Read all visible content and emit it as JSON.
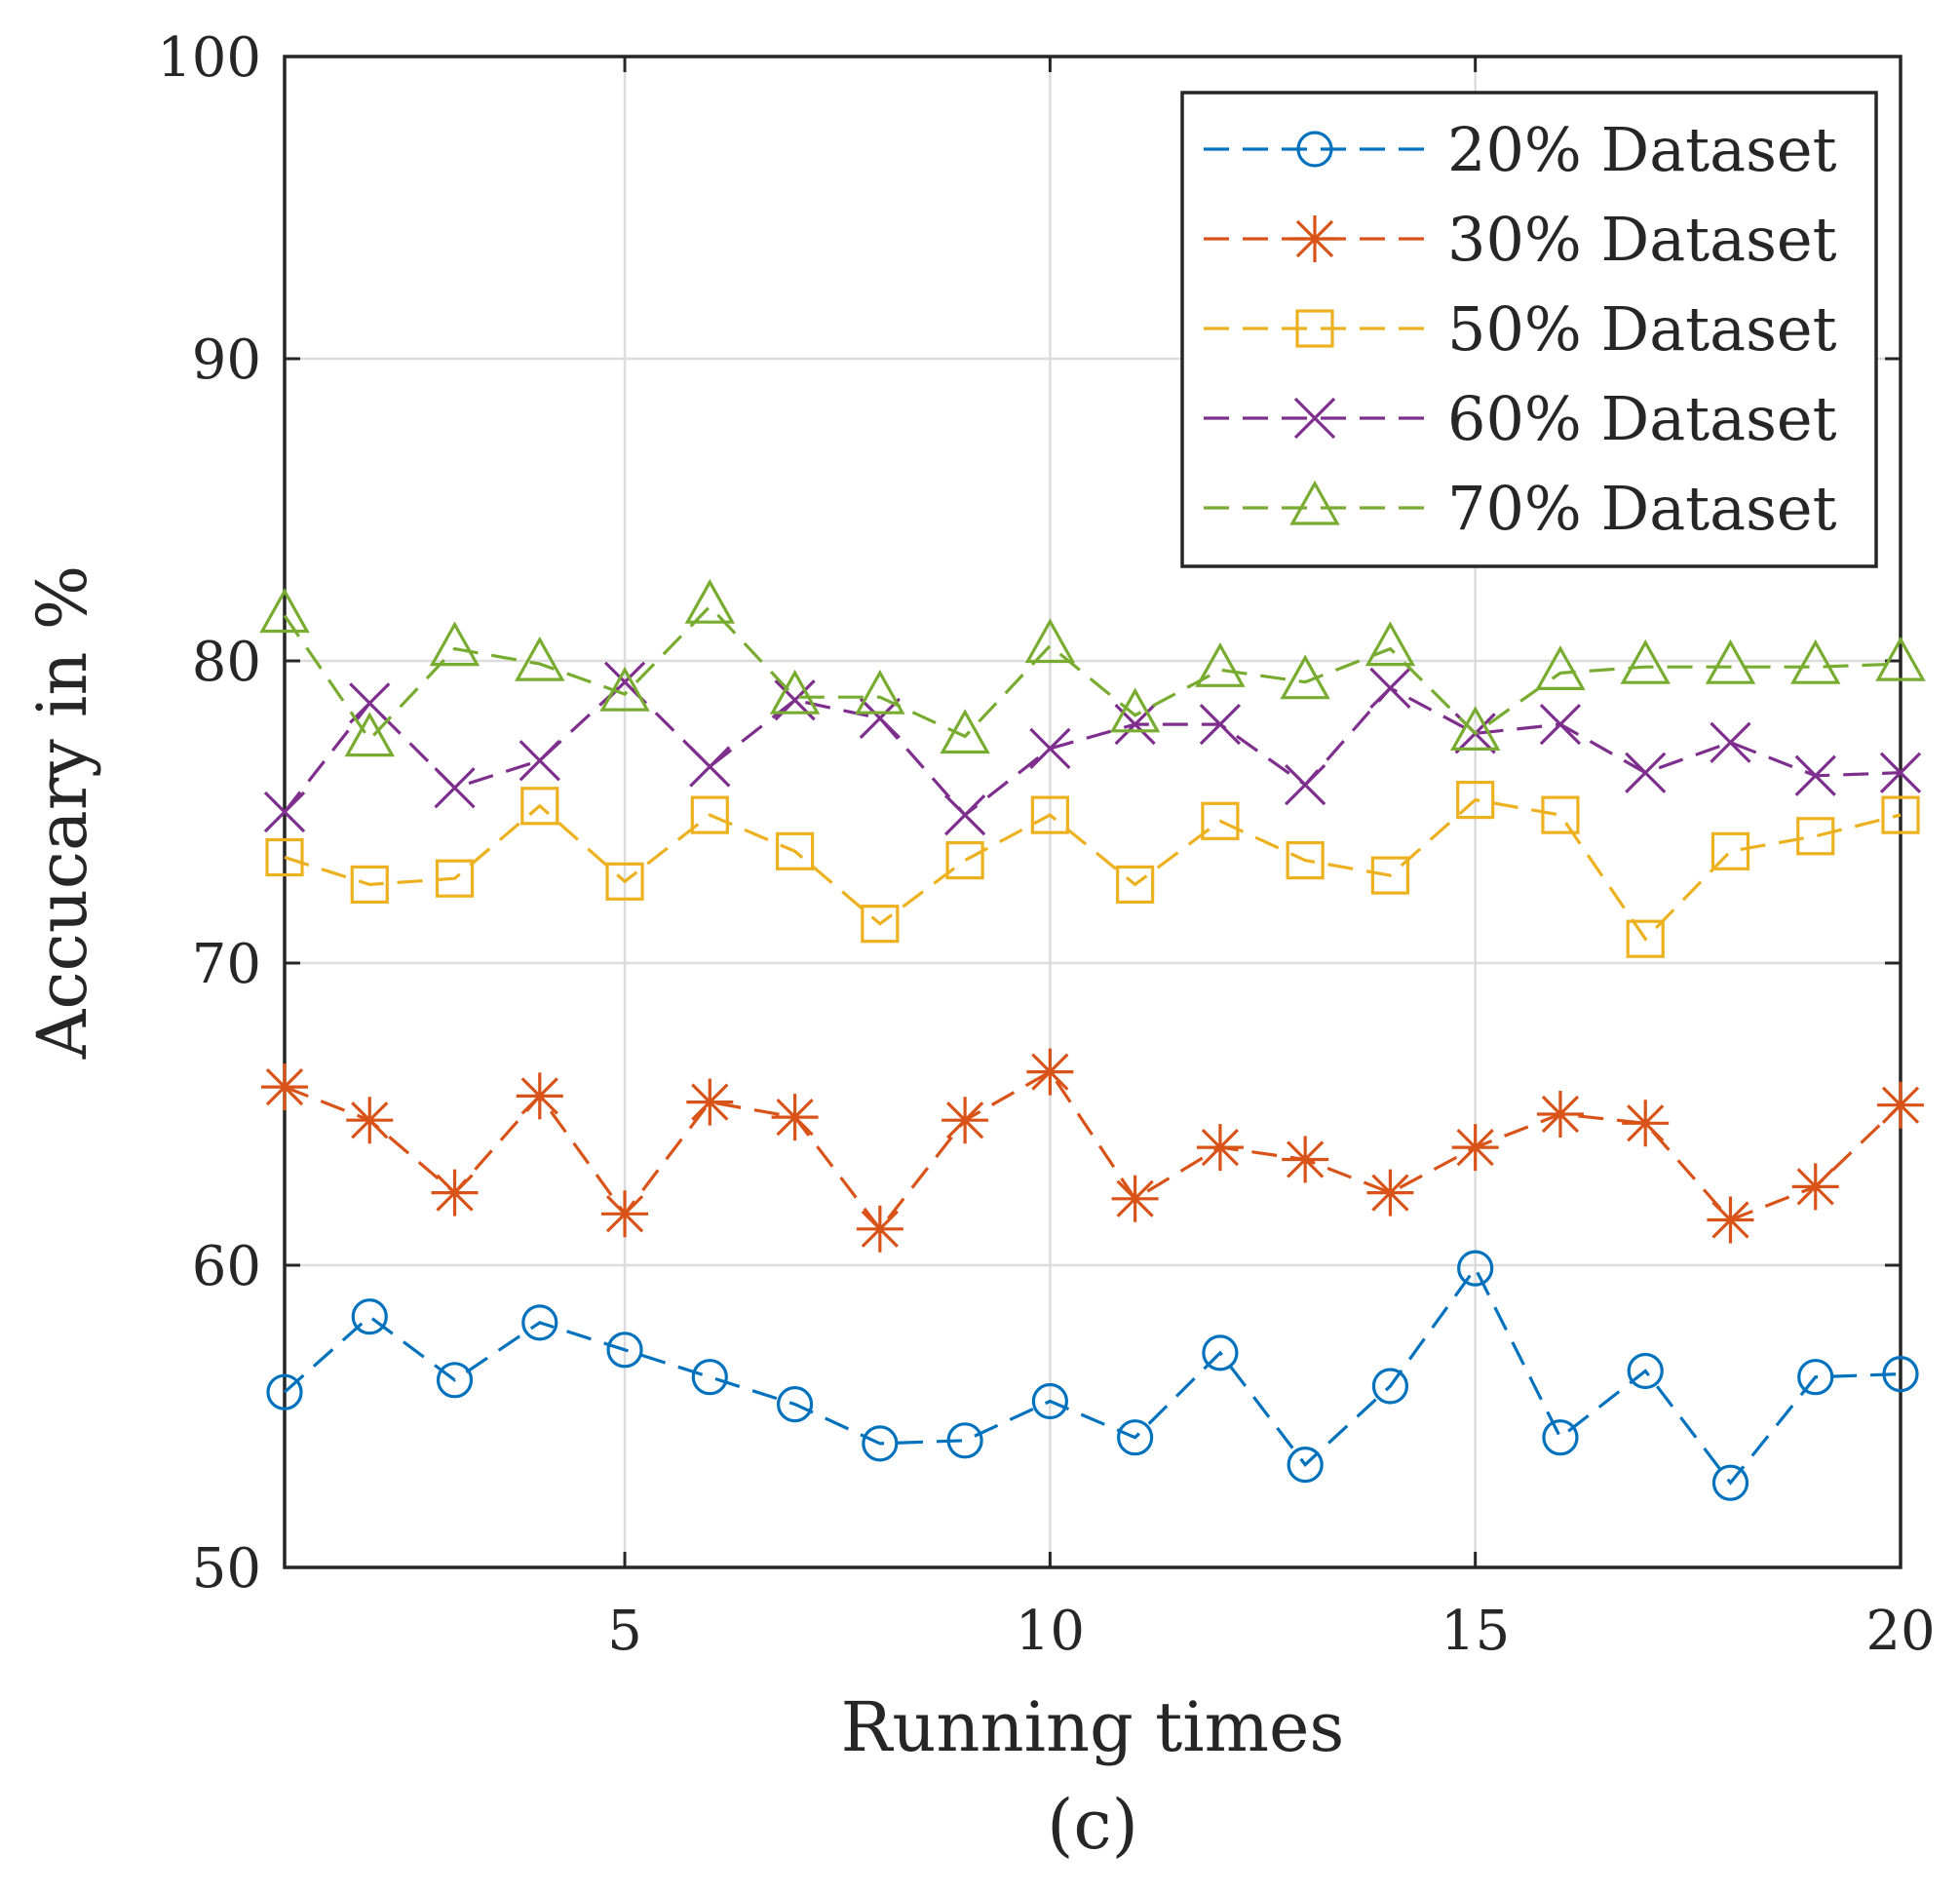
{
  "chart_data": {
    "type": "line",
    "title": "",
    "xlabel": "Running times",
    "ylabel": "Accucary in %",
    "caption": "(c)",
    "xlim": [
      1,
      20
    ],
    "ylim": [
      50,
      100
    ],
    "xticks": [
      5,
      10,
      15,
      20
    ],
    "yticks": [
      50,
      60,
      70,
      80,
      90,
      100
    ],
    "grid": true,
    "legend_position": "top-right",
    "x": [
      1,
      2,
      3,
      4,
      5,
      6,
      7,
      8,
      9,
      10,
      11,
      12,
      13,
      14,
      15,
      16,
      17,
      18,
      19,
      20
    ],
    "series": [
      {
        "name": "20% Dataset",
        "color": "#0072BD",
        "marker": "circle",
        "values": [
          55.8,
          58.3,
          56.2,
          58.1,
          57.2,
          56.3,
          55.4,
          54.1,
          54.2,
          55.5,
          54.3,
          57.1,
          53.4,
          56.0,
          59.9,
          54.3,
          56.5,
          52.8,
          56.3,
          56.4
        ]
      },
      {
        "name": "30% Dataset",
        "color": "#D95319",
        "marker": "asterisk",
        "values": [
          65.9,
          64.8,
          62.4,
          65.6,
          61.7,
          65.4,
          64.9,
          61.2,
          64.8,
          66.4,
          62.2,
          63.9,
          63.5,
          62.4,
          63.9,
          65.0,
          64.7,
          61.5,
          62.6,
          65.3
        ]
      },
      {
        "name": "50% Dataset",
        "color": "#EDB120",
        "marker": "square",
        "values": [
          73.5,
          72.6,
          72.8,
          75.2,
          72.7,
          74.9,
          73.7,
          71.3,
          73.4,
          74.9,
          72.6,
          74.7,
          73.4,
          72.9,
          75.4,
          74.9,
          70.8,
          73.7,
          74.2,
          74.9
        ]
      },
      {
        "name": "60% Dataset",
        "color": "#7E2F8E",
        "marker": "x",
        "values": [
          75.0,
          78.6,
          75.8,
          76.7,
          79.3,
          76.5,
          78.7,
          78.1,
          74.9,
          77.1,
          77.9,
          77.9,
          75.9,
          79.1,
          77.6,
          77.9,
          76.3,
          77.3,
          76.2,
          76.3
        ]
      },
      {
        "name": "70% Dataset",
        "color": "#77AC30",
        "marker": "triangle",
        "values": [
          81.5,
          77.4,
          80.4,
          79.9,
          78.9,
          81.8,
          78.8,
          78.8,
          77.5,
          80.5,
          78.2,
          79.7,
          79.3,
          80.4,
          77.6,
          79.6,
          79.8,
          79.8,
          79.8,
          79.9
        ]
      }
    ]
  }
}
